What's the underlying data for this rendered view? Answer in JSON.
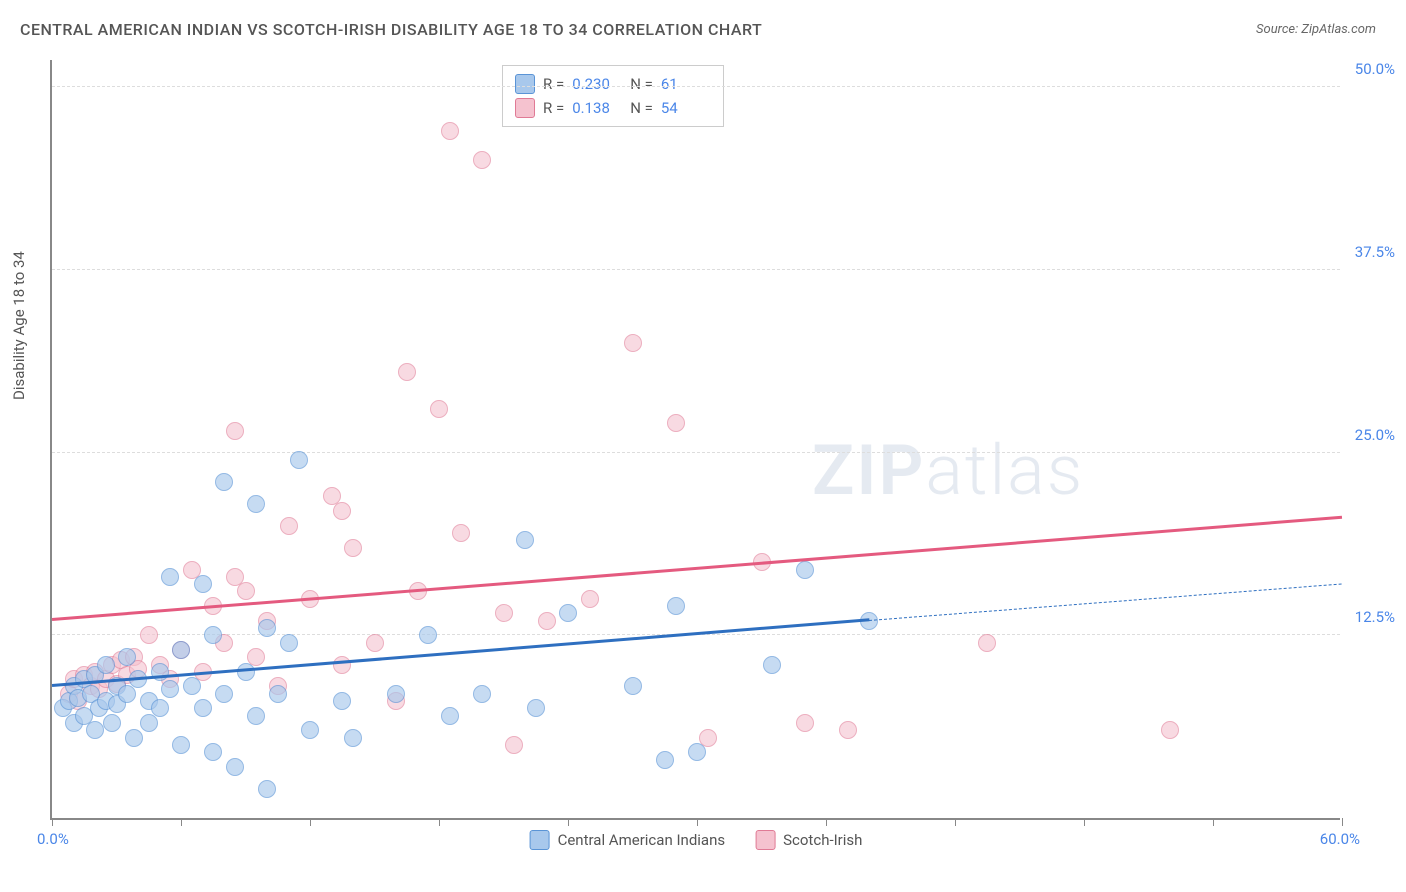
{
  "title": "CENTRAL AMERICAN INDIAN VS SCOTCH-IRISH DISABILITY AGE 18 TO 34 CORRELATION CHART",
  "source": "Source: ZipAtlas.com",
  "y_axis_label": "Disability Age 18 to 34",
  "watermark": {
    "part1": "ZIP",
    "part2": "atlas"
  },
  "xlim": [
    0,
    60
  ],
  "ylim": [
    0,
    52
  ],
  "x_origin_label": "0.0%",
  "x_max_label": "60.0%",
  "y_ticks": [
    {
      "value": 12.5,
      "label": "12.5%"
    },
    {
      "value": 25.0,
      "label": "25.0%"
    },
    {
      "value": 37.5,
      "label": "37.5%"
    },
    {
      "value": 50.0,
      "label": "50.0%"
    }
  ],
  "x_tick_positions": [
    0,
    6,
    12,
    18,
    24,
    30,
    36,
    42,
    48,
    54,
    60
  ],
  "series": {
    "blue": {
      "label": "Central American Indians",
      "R": "0.230",
      "N": "61",
      "fill": "#a8c8ec",
      "stroke": "#5a94d6",
      "line_color": "#2e6fc0",
      "marker_radius": 9,
      "marker_opacity": 0.65,
      "trend": {
        "x1": 0,
        "y1": 9.0,
        "x2": 38,
        "y2": 13.5,
        "dash_x2": 60,
        "dash_y2": 16.0
      },
      "points": [
        [
          0.5,
          7.5
        ],
        [
          0.8,
          8.0
        ],
        [
          1.0,
          6.5
        ],
        [
          1.0,
          9.0
        ],
        [
          1.2,
          8.2
        ],
        [
          1.5,
          7.0
        ],
        [
          1.5,
          9.5
        ],
        [
          1.8,
          8.5
        ],
        [
          2.0,
          6.0
        ],
        [
          2.0,
          9.8
        ],
        [
          2.2,
          7.5
        ],
        [
          2.5,
          8.0
        ],
        [
          2.5,
          10.5
        ],
        [
          2.8,
          6.5
        ],
        [
          3.0,
          9.0
        ],
        [
          3.0,
          7.8
        ],
        [
          3.5,
          11.0
        ],
        [
          3.5,
          8.5
        ],
        [
          3.8,
          5.5
        ],
        [
          4.0,
          9.5
        ],
        [
          4.5,
          8.0
        ],
        [
          4.5,
          6.5
        ],
        [
          5.0,
          10.0
        ],
        [
          5.0,
          7.5
        ],
        [
          5.5,
          16.5
        ],
        [
          5.5,
          8.8
        ],
        [
          6.0,
          5.0
        ],
        [
          6.0,
          11.5
        ],
        [
          6.5,
          9.0
        ],
        [
          7.0,
          16.0
        ],
        [
          7.0,
          7.5
        ],
        [
          7.5,
          4.5
        ],
        [
          7.5,
          12.5
        ],
        [
          8.0,
          23.0
        ],
        [
          8.0,
          8.5
        ],
        [
          8.5,
          3.5
        ],
        [
          9.0,
          10.0
        ],
        [
          9.5,
          21.5
        ],
        [
          9.5,
          7.0
        ],
        [
          10.0,
          2.0
        ],
        [
          10.0,
          13.0
        ],
        [
          10.5,
          8.5
        ],
        [
          11.0,
          12.0
        ],
        [
          11.5,
          24.5
        ],
        [
          12.0,
          6.0
        ],
        [
          13.5,
          8.0
        ],
        [
          14.0,
          5.5
        ],
        [
          16.0,
          8.5
        ],
        [
          17.5,
          12.5
        ],
        [
          18.5,
          7.0
        ],
        [
          20.0,
          8.5
        ],
        [
          22.0,
          19.0
        ],
        [
          22.5,
          7.5
        ],
        [
          24.0,
          14.0
        ],
        [
          27.0,
          9.0
        ],
        [
          28.5,
          4.0
        ],
        [
          29.0,
          14.5
        ],
        [
          30.0,
          4.5
        ],
        [
          33.5,
          10.5
        ],
        [
          35.0,
          17.0
        ],
        [
          38.0,
          13.5
        ]
      ]
    },
    "pink": {
      "label": "Scotch-Irish",
      "R": "0.138",
      "N": "54",
      "fill": "#f5c2cf",
      "stroke": "#e07a95",
      "line_color": "#e45a7f",
      "marker_radius": 9,
      "marker_opacity": 0.6,
      "trend": {
        "x1": 0,
        "y1": 13.5,
        "x2": 60,
        "y2": 20.5
      },
      "points": [
        [
          0.8,
          8.5
        ],
        [
          1.0,
          9.5
        ],
        [
          1.2,
          8.0
        ],
        [
          1.5,
          9.8
        ],
        [
          1.8,
          9.0
        ],
        [
          2.0,
          10.0
        ],
        [
          2.2,
          8.8
        ],
        [
          2.5,
          9.5
        ],
        [
          2.8,
          10.5
        ],
        [
          3.0,
          9.2
        ],
        [
          3.2,
          10.8
        ],
        [
          3.5,
          9.8
        ],
        [
          3.8,
          11.0
        ],
        [
          4.0,
          10.2
        ],
        [
          4.5,
          12.5
        ],
        [
          5.0,
          10.5
        ],
        [
          5.5,
          9.5
        ],
        [
          6.0,
          11.5
        ],
        [
          6.5,
          17.0
        ],
        [
          7.0,
          10.0
        ],
        [
          7.5,
          14.5
        ],
        [
          8.0,
          12.0
        ],
        [
          8.5,
          26.5
        ],
        [
          9.0,
          15.5
        ],
        [
          9.5,
          11.0
        ],
        [
          10.0,
          13.5
        ],
        [
          10.5,
          9.0
        ],
        [
          11.0,
          20.0
        ],
        [
          12.0,
          15.0
        ],
        [
          13.0,
          22.0
        ],
        [
          13.5,
          10.5
        ],
        [
          14.0,
          18.5
        ],
        [
          15.0,
          12.0
        ],
        [
          16.0,
          8.0
        ],
        [
          16.5,
          30.5
        ],
        [
          17.0,
          15.5
        ],
        [
          18.0,
          28.0
        ],
        [
          18.5,
          47.0
        ],
        [
          19.0,
          19.5
        ],
        [
          20.0,
          45.0
        ],
        [
          21.0,
          14.0
        ],
        [
          21.5,
          5.0
        ],
        [
          23.0,
          13.5
        ],
        [
          25.0,
          15.0
        ],
        [
          27.0,
          32.5
        ],
        [
          29.0,
          27.0
        ],
        [
          30.5,
          5.5
        ],
        [
          33.0,
          17.5
        ],
        [
          35.0,
          6.5
        ],
        [
          37.0,
          6.0
        ],
        [
          43.5,
          12.0
        ],
        [
          52.0,
          6.0
        ],
        [
          8.5,
          16.5
        ],
        [
          13.5,
          21.0
        ]
      ]
    }
  },
  "stats_labels": {
    "r_prefix": "R =",
    "n_prefix": "N ="
  },
  "background_color": "#ffffff",
  "grid_color": "#dddddd"
}
